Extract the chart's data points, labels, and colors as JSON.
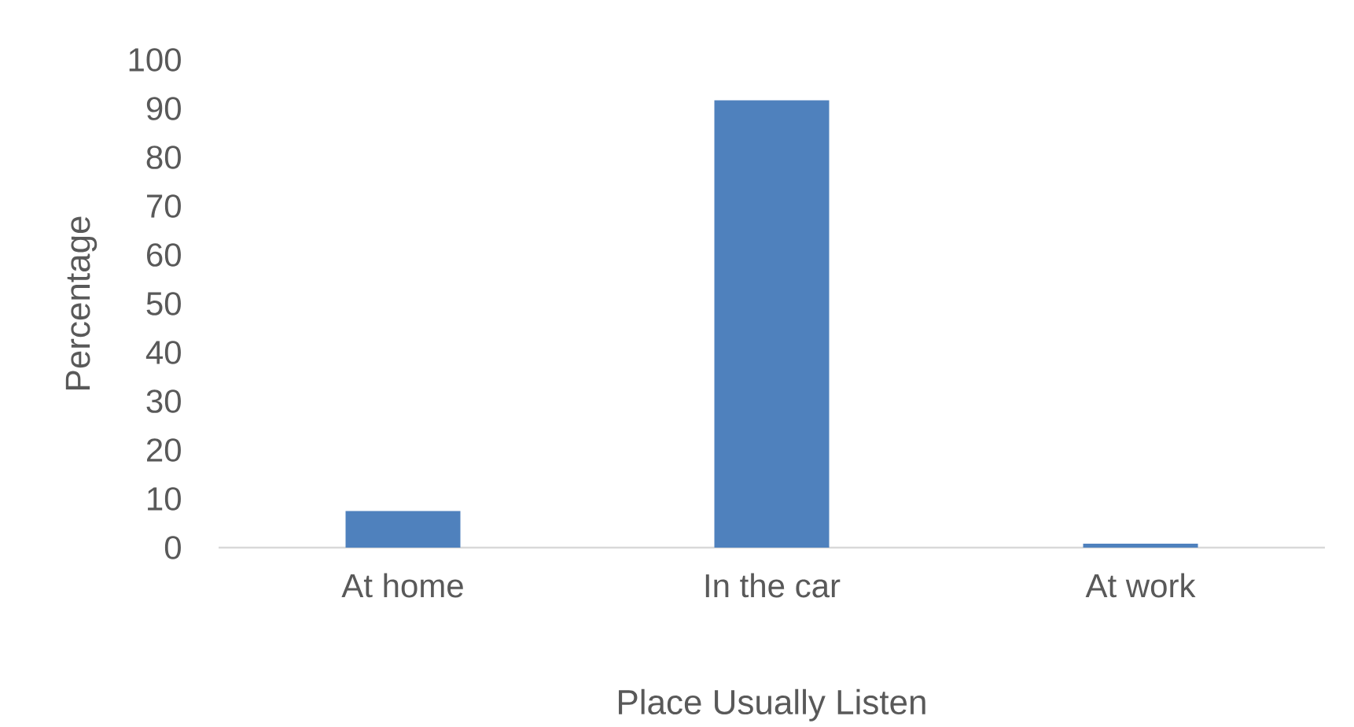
{
  "chart_data": {
    "type": "bar",
    "xlabel": "Place Usually Listen",
    "ylabel": "Percentage",
    "categories": [
      "At home",
      "In the car",
      "At work"
    ],
    "values": [
      7.5,
      91.7,
      0.8
    ],
    "color": "#4f81bd",
    "ylim": [
      0,
      100
    ],
    "yticks": [
      0,
      10,
      20,
      30,
      40,
      50,
      60,
      70,
      80,
      90,
      100
    ]
  }
}
